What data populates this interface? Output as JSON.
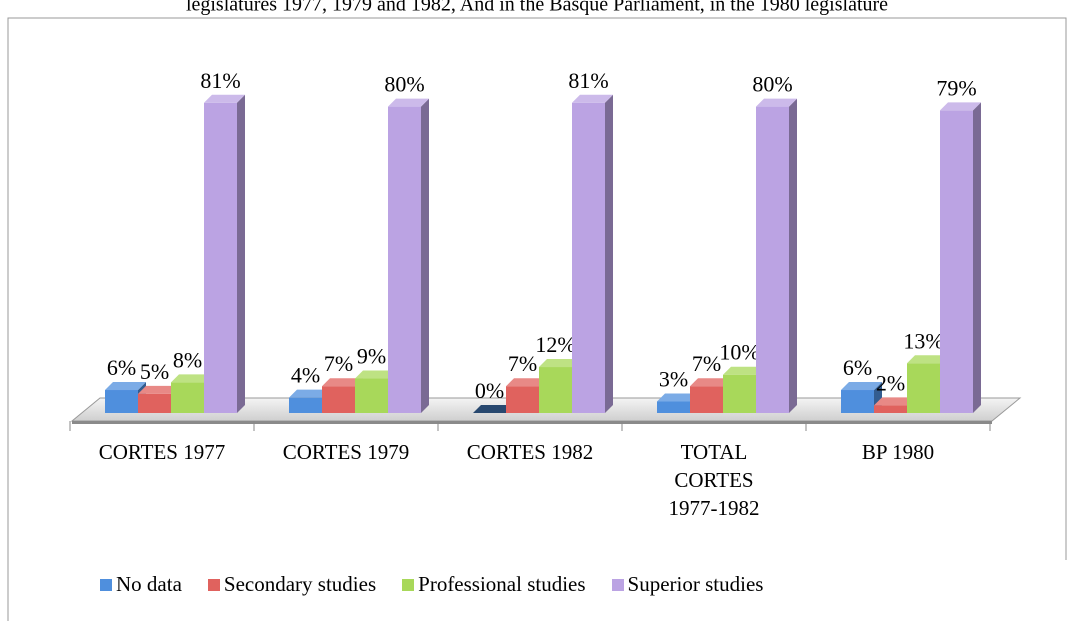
{
  "chart_data": {
    "type": "bar3d",
    "title": "legislatures 1977, 1979 and 1982, And in the Basque Parliament, in the 1980 legislature",
    "categories": [
      "CORTES 1977",
      "CORTES 1979",
      "CORTES 1982",
      "TOTAL CORTES 1977-1982",
      "BP 1980"
    ],
    "series": [
      {
        "name": "No data",
        "color": "#4f8fdd",
        "values": [
          6,
          4,
          0,
          3,
          6
        ],
        "value_labels": [
          "6%",
          "4%",
          "0%",
          "3%",
          "6%"
        ]
      },
      {
        "name": "Secondary studies",
        "color": "#e0625e",
        "values": [
          5,
          7,
          7,
          7,
          2
        ],
        "value_labels": [
          "5%",
          "7%",
          "7%",
          "7%",
          "2%"
        ]
      },
      {
        "name": "Professional studies",
        "color": "#a8d85a",
        "values": [
          8,
          9,
          12,
          10,
          13
        ],
        "value_labels": [
          "8%",
          "9%",
          "12%",
          "10%",
          "13%"
        ]
      },
      {
        "name": "Superior studies",
        "color": "#bba3e3",
        "values": [
          81,
          80,
          81,
          80,
          79
        ],
        "value_labels": [
          "81%",
          "80%",
          "81%",
          "80%",
          "79%"
        ]
      }
    ],
    "legend": "bottom"
  }
}
